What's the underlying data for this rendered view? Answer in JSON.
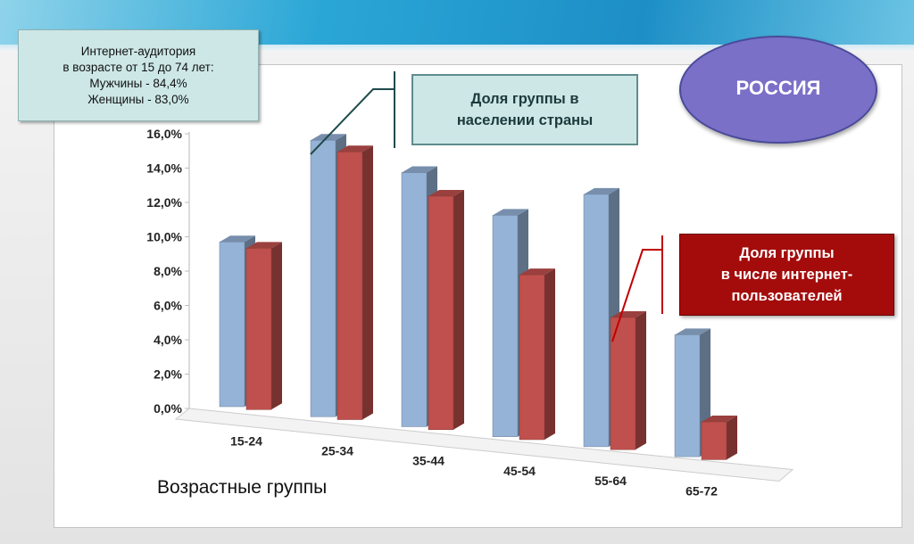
{
  "chart_data": {
    "type": "bar",
    "title": "",
    "xlabel": "Возрастные группы",
    "ylabel": "",
    "categories": [
      "15-24",
      "25-34",
      "35-44",
      "45-54",
      "55-64",
      "65-72"
    ],
    "y_ticks": [
      "0,0%",
      "2,0%",
      "4,0%",
      "6,0%",
      "8,0%",
      "10,0%",
      "12,0%",
      "14,0%",
      "16,0%"
    ],
    "ylim": [
      0,
      16
    ],
    "grid": false,
    "style": "3d-columns",
    "series": [
      {
        "name": "Доля группы в населении страны",
        "color": "#95b3d7",
        "values": [
          9.6,
          16.1,
          14.8,
          12.9,
          14.7,
          7.1
        ]
      },
      {
        "name": "Доля группы в числе интернет-пользователей",
        "color": "#c0504d",
        "values": [
          9.4,
          15.6,
          13.6,
          9.6,
          7.7,
          2.2
        ]
      }
    ]
  },
  "info_box": {
    "line1": "Интернет-аудитория",
    "line2": "в возрасте от 15 до 74 лет:",
    "line3": "Мужчины - 84,4%",
    "line4": "Женщины - 83,0%"
  },
  "callouts": {
    "population_line1": "Доля группы в",
    "population_line2": "населении страны",
    "internet_line1": "Доля группы",
    "internet_line2": "в числе интернет-",
    "internet_line3": "пользователей"
  },
  "country": "РОССИЯ",
  "colors": {
    "population": "#95b3d7",
    "internet": "#c0504d",
    "badge": "#7a70c8",
    "callout_red": "#a40c0c",
    "callout_teal": "#cde7e7"
  }
}
